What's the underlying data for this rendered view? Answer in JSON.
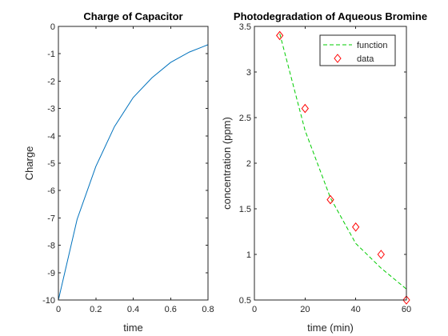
{
  "figure_background": "#ffffff",
  "chart_data": [
    {
      "type": "line",
      "title": "Charge of Capacitor",
      "xlabel": "time",
      "ylabel": "Charge",
      "xlim": [
        0,
        0.8
      ],
      "ylim": [
        -10,
        0
      ],
      "xticks": [
        0,
        0.2,
        0.4,
        0.6,
        0.8
      ],
      "xtick_labels": [
        "0",
        "0.2",
        "0.4",
        "0.6",
        "0.8"
      ],
      "yticks": [
        -10,
        -9,
        -8,
        -7,
        -6,
        -5,
        -4,
        -3,
        -2,
        -1,
        0
      ],
      "ytick_labels": [
        "-10",
        "-9",
        "-8",
        "-7",
        "-6",
        "-5",
        "-4",
        "-3",
        "-2",
        "-1",
        "0"
      ],
      "grid": false,
      "series": [
        {
          "color": "#0072bd",
          "style": "solid",
          "x": [
            0,
            0.1,
            0.2,
            0.3,
            0.4,
            0.5,
            0.6,
            0.7,
            0.8
          ],
          "y": [
            -10,
            -7.05,
            -5.12,
            -3.66,
            -2.6,
            -1.88,
            -1.32,
            -0.94,
            -0.67
          ]
        }
      ]
    },
    {
      "type": "scatter",
      "title": "Photodegradation of Aqueous Bromine",
      "xlabel": "time (min)",
      "ylabel": "concentration (ppm)",
      "xlim": [
        0,
        60
      ],
      "ylim": [
        0.5,
        3.5
      ],
      "xticks": [
        0,
        20,
        40,
        60
      ],
      "xtick_labels": [
        "0",
        "20",
        "40",
        "60"
      ],
      "yticks": [
        0.5,
        1,
        1.5,
        2,
        2.5,
        3,
        3.5
      ],
      "ytick_labels": [
        "0.5",
        "1",
        "1.5",
        "2",
        "2.5",
        "3",
        "3.5"
      ],
      "grid": false,
      "legend_location": "top-right",
      "series": [
        {
          "name": "function",
          "color": "#00cc00",
          "style": "dashed",
          "x": [
            10,
            20,
            30,
            40,
            50,
            60
          ],
          "y": [
            3.42,
            2.36,
            1.62,
            1.12,
            0.85,
            0.62
          ]
        },
        {
          "name": "data",
          "color": "#ff0000",
          "style": "diamond-markers",
          "x": [
            10,
            20,
            30,
            40,
            50,
            60
          ],
          "y": [
            3.4,
            2.6,
            1.6,
            1.3,
            1.0,
            0.5
          ]
        }
      ]
    }
  ]
}
